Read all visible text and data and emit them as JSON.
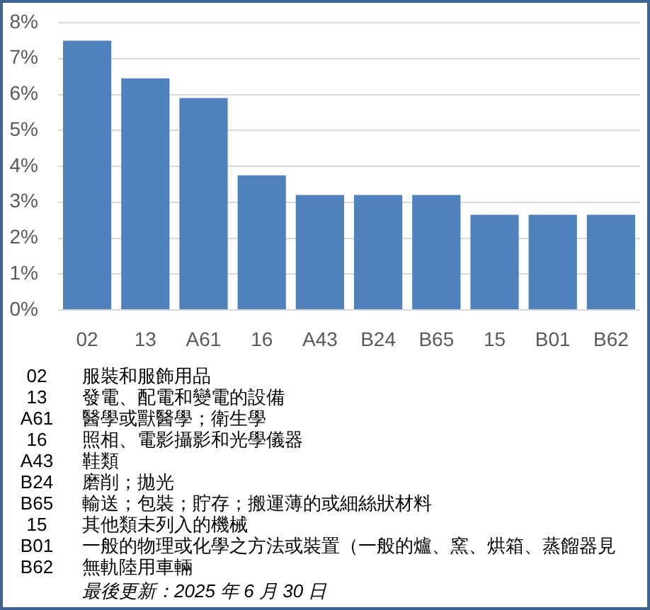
{
  "chart_data": {
    "type": "bar",
    "categories": [
      "02",
      "13",
      "A61",
      "16",
      "A43",
      "B24",
      "B65",
      "15",
      "B01",
      "B62"
    ],
    "values": [
      7.5,
      6.45,
      5.9,
      3.75,
      3.2,
      3.2,
      3.2,
      2.65,
      2.65,
      2.65
    ],
    "color": "#4f81bd",
    "ylim": [
      0,
      8
    ],
    "yticks": [
      {
        "value": 0,
        "label": "0%"
      },
      {
        "value": 1,
        "label": "1%"
      },
      {
        "value": 2,
        "label": "2%"
      },
      {
        "value": 3,
        "label": "3%"
      },
      {
        "value": 4,
        "label": "4%"
      },
      {
        "value": 5,
        "label": "5%"
      },
      {
        "value": 6,
        "label": "6%"
      },
      {
        "value": 7,
        "label": "7%"
      },
      {
        "value": 8,
        "label": "8%"
      }
    ],
    "grid": "y",
    "annotations": [
      "服裝和服飾用品",
      "發電、配電和變電的設備",
      "醫學或獸醫學；衛生學",
      "照相、電影攝影和光學儀器",
      "鞋類",
      "磨削；拋光",
      "輸送；包裝；貯存；搬運薄的或細絲狀材料",
      "其他類未列入的機械",
      "一般的物理或化學之方法或裝置（一般的爐、窯、烘箱、蒸餾器見",
      "無軌陸用車輛",
      "最後更新：2025 年 6 月 30 日"
    ]
  }
}
